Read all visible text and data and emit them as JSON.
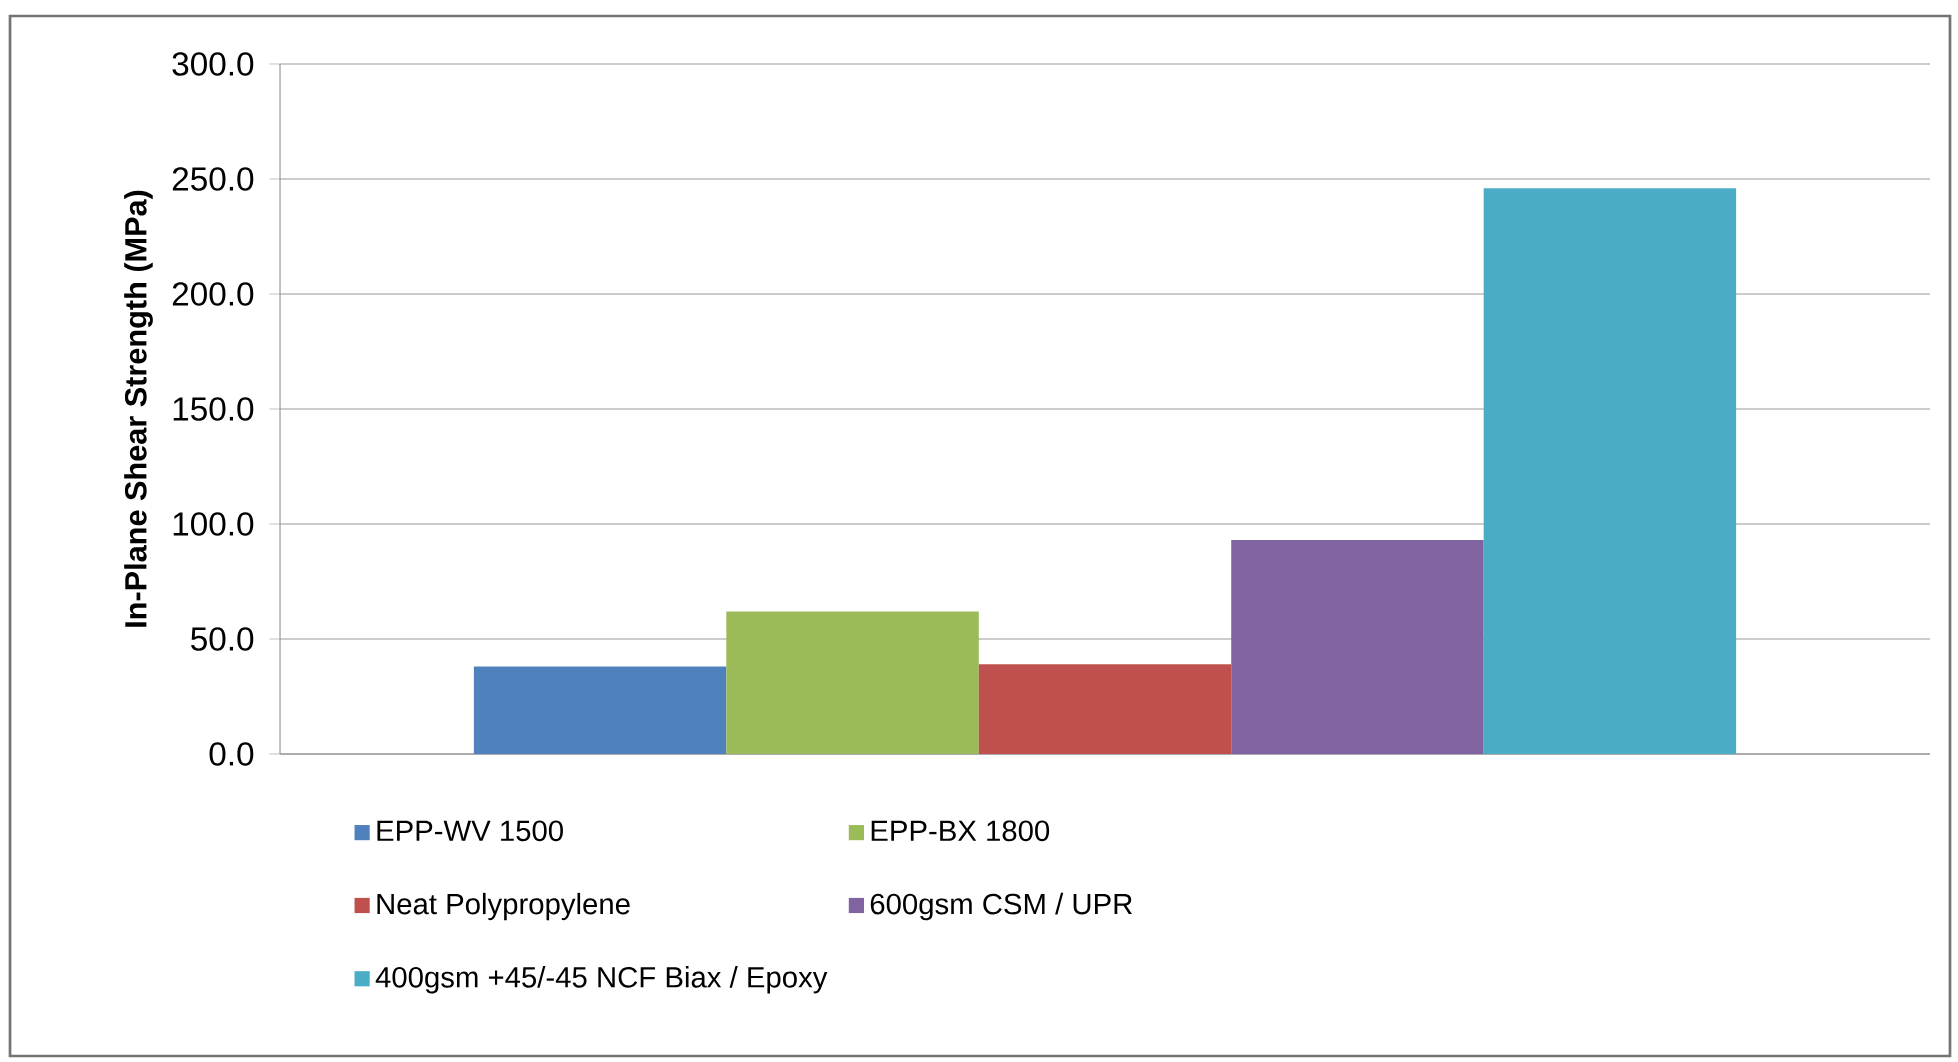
{
  "chart_data": {
    "type": "bar",
    "ylabel": "In-Plane Shear Strength (MPa)",
    "categories": [
      null
    ],
    "series": [
      {
        "name": "EPP-WV 1500",
        "color": "#4f81bd",
        "values": [
          38
        ]
      },
      {
        "name": "EPP-BX 1800",
        "color": "#9bbb59",
        "values": [
          62
        ]
      },
      {
        "name": "Neat Polypropylene",
        "color": "#c0504d",
        "values": [
          39
        ]
      },
      {
        "name": "600gsm CSM / UPR",
        "color": "#8064a2",
        "values": [
          93
        ]
      },
      {
        "name": "400gsm +45/-45 NCF Biax / Epoxy",
        "color": "#4bacc6",
        "values": [
          246
        ]
      }
    ],
    "ylim": [
      0,
      300
    ],
    "yticks": [
      {
        "value": 0,
        "label": "0.0"
      },
      {
        "value": 50,
        "label": "50.0"
      },
      {
        "value": 100,
        "label": "100.0"
      },
      {
        "value": 150,
        "label": "150.0"
      },
      {
        "value": 200,
        "label": "200.0"
      },
      {
        "value": 250,
        "label": "250.0"
      },
      {
        "value": 300,
        "label": "300.0"
      }
    ],
    "grid": "y",
    "legend": "bottom"
  }
}
